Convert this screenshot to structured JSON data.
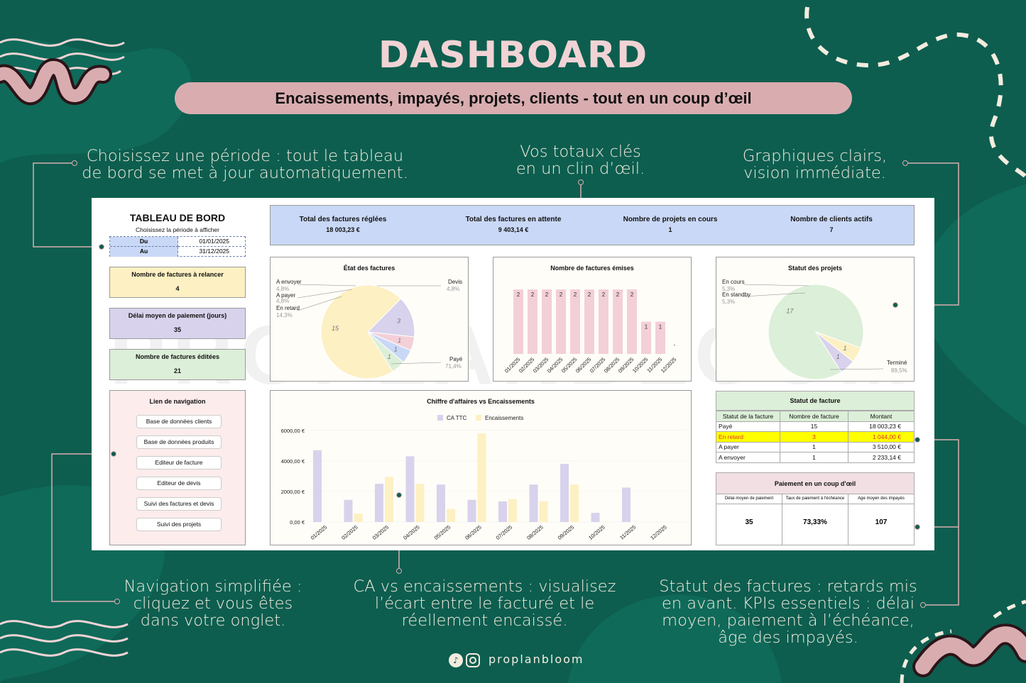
{
  "header": {
    "title": "DASHBOARD",
    "subtitle": "Encaissements, impayés, projets, clients - tout en un coup d’œil"
  },
  "notes": {
    "periode": "Choisissez une période : tout le tableau\nde bord se met à jour automatiquement.",
    "totaux": "Vos totaux clés\nen un clin d’œil.",
    "graphiques": "Graphiques clairs,\nvision immédiate.",
    "navigation": "Navigation simplifiée :\ncliquez et vous êtes\ndans votre onglet.",
    "ca": "CA vs encaissements : visualisez\nl’écart entre le facturé et le\nréellement encaissé.",
    "statut": "Statut des factures : retards mis\nen avant. KPIs essentiels : délai\nmoyen, paiement à l’échéance,\nâge des impayés."
  },
  "footer": {
    "handle": "proplanbloom",
    "icons": [
      "tiktok-icon",
      "instagram-icon"
    ]
  },
  "watermark": "PROPLANBLOOM",
  "colors": {
    "bg": "#0d5e4f",
    "pink": "#d9adb0",
    "blue": "#c9d8f6",
    "yellow": "#fdf0c2",
    "purple": "#d8d2ec",
    "green": "#dcefd8",
    "lightpink": "#fdecec"
  },
  "sidebar": {
    "title": "TABLEAU DE BORD",
    "period_prompt": "Choisissez la période à afficher",
    "du_label": "Du",
    "du_value": "01/01/2025",
    "au_label": "Au",
    "au_value": "31/12/2025",
    "relancer_label": "Nombre de factures à relancer",
    "relancer_value": "4",
    "delai_label": "Délai moyen de paiement (jours)",
    "delai_value": "35",
    "editees_label": "Nombre de factures éditées",
    "editees_value": "21",
    "nav_title": "Lien de navigation",
    "nav_items": [
      "Base de données clients",
      "Base de données produits",
      "Editeur de facture",
      "Editeur de devis",
      "Suivi des factures et devis",
      "Suivi des projets"
    ]
  },
  "kpis": [
    {
      "label": "Total des factures réglées",
      "value": "18 003,23 €"
    },
    {
      "label": "Total des factures en attente",
      "value": "9 403,14 €"
    },
    {
      "label": "Nombre de projets en cours",
      "value": "1"
    },
    {
      "label": "Nombre de clients actifs",
      "value": "7"
    }
  ],
  "chart_data": [
    {
      "type": "pie",
      "title": "État des factures",
      "slices": [
        {
          "name": "Payé",
          "value": 15,
          "pct": "71,4%",
          "color": "#fdf0c2"
        },
        {
          "name": "En retard",
          "value": 3,
          "pct": "14,3%",
          "color": "#d8d2ec"
        },
        {
          "name": "A payer",
          "value": 1,
          "pct": "4,8%",
          "color": "#f3cfd8"
        },
        {
          "name": "A envoyer",
          "value": 1,
          "pct": "4,8%",
          "color": "#c9d8f6"
        },
        {
          "name": "Devis",
          "value": 1,
          "pct": "4,8%",
          "color": "#dcefd8"
        }
      ]
    },
    {
      "type": "bar",
      "title": "Nombre de factures émises",
      "categories": [
        "01/2025",
        "02/2025",
        "03/2025",
        "04/2025",
        "05/2025",
        "06/2025",
        "07/2025",
        "08/2025",
        "09/2025",
        "10/2025",
        "11/2025",
        "12/2025"
      ],
      "values": [
        2,
        2,
        2,
        2,
        2,
        2,
        2,
        2,
        2,
        1,
        1,
        0
      ],
      "data_labels": [
        "2",
        "2",
        "2",
        "2",
        "2",
        "2",
        "2",
        "2",
        "2",
        "1",
        "1",
        "-"
      ],
      "ylim": [
        0,
        2.2
      ],
      "color": "#f3cfd8"
    },
    {
      "type": "pie",
      "title": "Statut des projets",
      "slices": [
        {
          "name": "Terminé",
          "value": 17,
          "pct": "89,5%",
          "color": "#dcefd8"
        },
        {
          "name": "En standby",
          "value": 1,
          "pct": "5,3%",
          "color": "#fdf0c2"
        },
        {
          "name": "En cours",
          "value": 1,
          "pct": "5,3%",
          "color": "#d8d2ec"
        }
      ]
    },
    {
      "type": "bar",
      "title": "Chiffre d'affaires vs Encaissements",
      "categories": [
        "01/2025",
        "02/2025",
        "03/2025",
        "04/2025",
        "05/2025",
        "06/2025",
        "07/2025",
        "08/2025",
        "09/2025",
        "10/2025",
        "11/2025",
        "12/2025"
      ],
      "series": [
        {
          "name": "CA TTC",
          "color": "#d8d2ec",
          "values": [
            4700,
            1450,
            2500,
            4300,
            2450,
            1450,
            1350,
            2450,
            3800,
            600,
            2250,
            0
          ]
        },
        {
          "name": "Encaissements",
          "color": "#fdf0c2",
          "values": [
            0,
            550,
            2950,
            2500,
            850,
            5800,
            1500,
            1350,
            2450,
            0,
            0,
            0
          ]
        }
      ],
      "yticks": [
        "0,00 €",
        "2000,00 €",
        "4000,00 €",
        "6000,00 €"
      ],
      "ylim": [
        0,
        6500
      ]
    }
  ],
  "statut_facture": {
    "title": "Statut de facture",
    "headers": [
      "Statut de la facture",
      "Nombre de facture",
      "Montant"
    ],
    "rows": [
      [
        "Payé",
        "15",
        "18 003,23 €"
      ],
      [
        "En retard",
        "3",
        "1 044,00 €"
      ],
      [
        "A payer",
        "1",
        "3 510,00 €"
      ],
      [
        "A envoyer",
        "1",
        "2 233,14 €"
      ]
    ]
  },
  "paiement": {
    "title": "Paiement en un coup d'œil",
    "headers": [
      "Délai moyen de paiement",
      "Taux de paiement à l'échéance",
      "Age moyen des impayés"
    ],
    "values": [
      "35",
      "73,33%",
      "107"
    ]
  }
}
